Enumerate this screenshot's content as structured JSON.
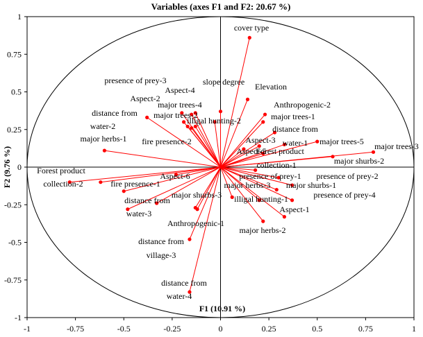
{
  "chart_data": {
    "type": "scatter",
    "subtype": "pca-correlation-circle",
    "title": "Variables (axes F1 and F2: 20.67 %)",
    "xlabel": "F1 (10.91 %)",
    "ylabel": "F2 (9.76 %)",
    "xlim": [
      -1,
      1
    ],
    "ylim": [
      -1,
      1
    ],
    "xticks": [
      "-1",
      "-0.75",
      "-0.5",
      "-0.25",
      "0",
      "0.25",
      "0.5",
      "0.75",
      "1"
    ],
    "yticks": [
      "1",
      "0.75",
      "0.5",
      "0.25",
      "0",
      "-0.25",
      "-0.5",
      "-0.75",
      "-1"
    ],
    "grid": false,
    "unit_circle": true,
    "colors": {
      "vector": "#ff0000",
      "circle": "#000000",
      "axes": "#000000"
    },
    "variables": [
      {
        "label": "cover type",
        "x": 0.15,
        "y": 0.86
      },
      {
        "label": "slope degree",
        "x": 0.0,
        "y": 0.37
      },
      {
        "label": "Elevation",
        "x": 0.14,
        "y": 0.45
      },
      {
        "label": "Anthropogenic-2",
        "x": 0.23,
        "y": 0.35
      },
      {
        "label": "major trees-1",
        "x": 0.22,
        "y": 0.3
      },
      {
        "label": "distance from",
        "x": 0.28,
        "y": 0.23
      },
      {
        "label": "presence of prey-3",
        "x": -0.2,
        "y": 0.36
      },
      {
        "label": "Aspect-4",
        "x": -0.13,
        "y": 0.36
      },
      {
        "label": "Aspect-2",
        "x": -0.19,
        "y": 0.3
      },
      {
        "label": "major trees-4",
        "x": -0.15,
        "y": 0.35
      },
      {
        "label": "major trees-2",
        "x": -0.17,
        "y": 0.27
      },
      {
        "label": "distance from",
        "x": -0.38,
        "y": 0.33
      },
      {
        "label": "water-2",
        "x": -0.15,
        "y": 0.26
      },
      {
        "label": "major herbs-1",
        "x": -0.6,
        "y": 0.11
      },
      {
        "label": "fire presence-2",
        "x": -0.13,
        "y": 0.27
      },
      {
        "label": "illigal hunting-2",
        "x": -0.03,
        "y": 0.3
      },
      {
        "label": "Aspect-3",
        "x": 0.2,
        "y": 0.14
      },
      {
        "label": "Aspect-5",
        "x": 0.12,
        "y": 0.12
      },
      {
        "label": "Forest product",
        "x": 0.22,
        "y": 0.09
      },
      {
        "label": "water-1",
        "x": 0.33,
        "y": 0.15
      },
      {
        "label": "major trees-5",
        "x": 0.5,
        "y": 0.17
      },
      {
        "label": "major trees-3",
        "x": 0.79,
        "y": 0.1
      },
      {
        "label": "major shurbs-2",
        "x": 0.58,
        "y": 0.07
      },
      {
        "label": "collection-1",
        "x": 0.18,
        "y": -0.02
      },
      {
        "label": "Forest product",
        "x": -0.78,
        "y": -0.1
      },
      {
        "label": "collection-2",
        "x": -0.62,
        "y": -0.1
      },
      {
        "label": "Aspect-6",
        "x": -0.23,
        "y": -0.05
      },
      {
        "label": "fire presence-1",
        "x": -0.5,
        "y": -0.16
      },
      {
        "label": "distance from",
        "x": -0.48,
        "y": -0.28
      },
      {
        "label": "water-3",
        "x": -0.33,
        "y": -0.24
      },
      {
        "label": "major shurbs-3",
        "x": -0.13,
        "y": -0.27
      },
      {
        "label": "presence of prey-1",
        "x": 0.3,
        "y": -0.07
      },
      {
        "label": "presence of prey-2",
        "x": 0.37,
        "y": -0.12
      },
      {
        "label": "major shurbs-1",
        "x": 0.29,
        "y": -0.15
      },
      {
        "label": "presence of prey-4",
        "x": 0.37,
        "y": -0.22
      },
      {
        "label": "major herbs-3",
        "x": 0.06,
        "y": -0.2
      },
      {
        "label": "illigal hunting-1",
        "x": 0.2,
        "y": -0.22
      },
      {
        "label": "Aspect-1",
        "x": 0.33,
        "y": -0.33
      },
      {
        "label": "major herbs-2",
        "x": 0.22,
        "y": -0.36
      },
      {
        "label": "Anthropogenic-1",
        "x": -0.12,
        "y": -0.28
      },
      {
        "label": "distance from",
        "x": -0.16,
        "y": -0.48
      },
      {
        "label": "village-3",
        "x": -0.16,
        "y": -0.48
      },
      {
        "label": "distance from",
        "x": -0.16,
        "y": -0.83
      },
      {
        "label": "water-4",
        "x": -0.16,
        "y": -0.83
      }
    ]
  }
}
